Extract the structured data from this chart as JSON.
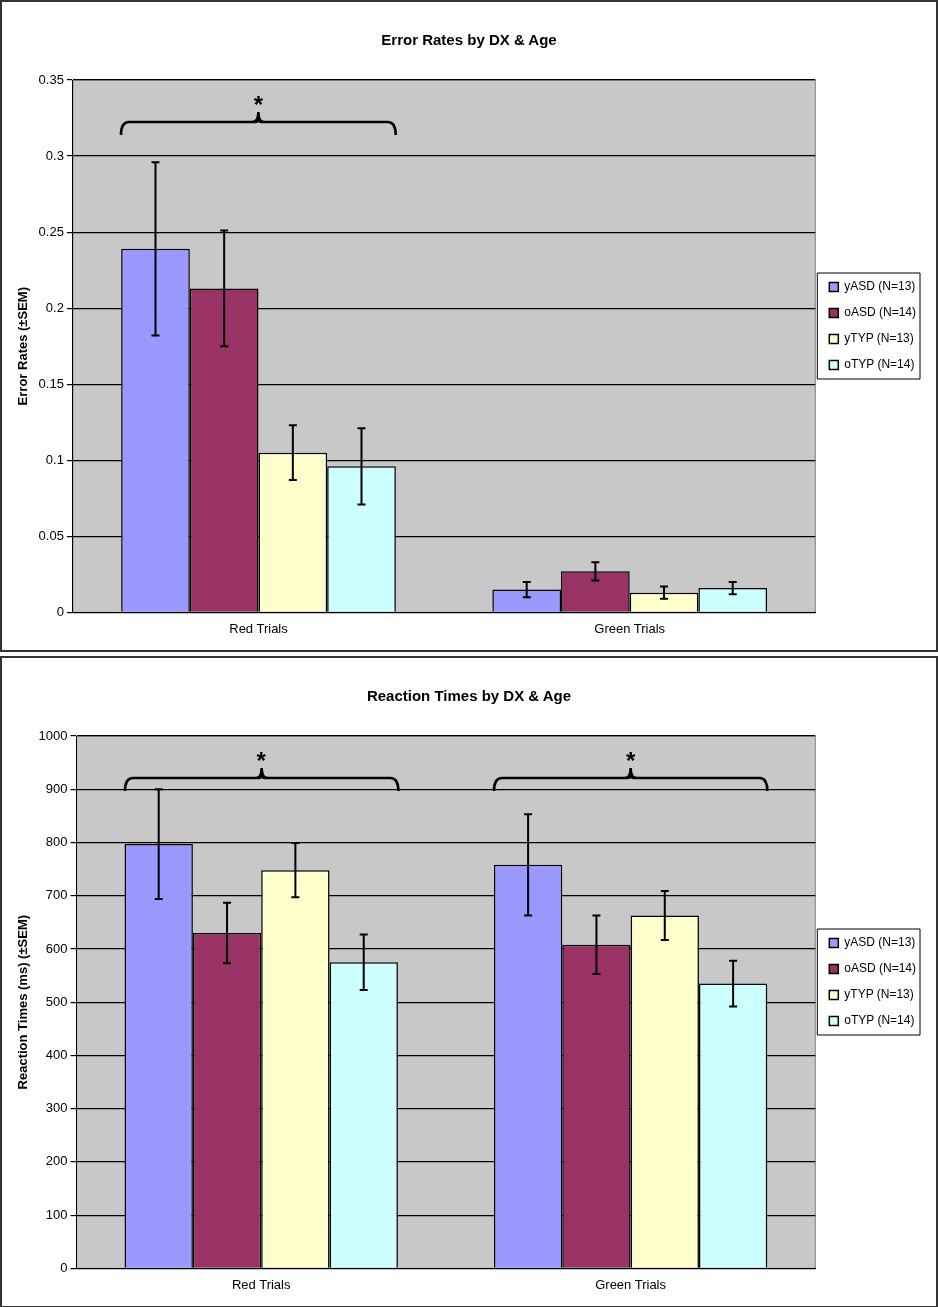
{
  "chart_data": [
    {
      "type": "bar",
      "title": "Error Rates by DX & Age",
      "ylabel": "Error Rates (±SEM)",
      "categories": [
        "Red Trials",
        "Green Trials"
      ],
      "series": [
        {
          "name": "yASD (N=13)",
          "color": "#9999ff",
          "values": [
            0.239,
            0.015
          ],
          "errors": [
            0.057,
            0.005
          ]
        },
        {
          "name": "oASD (N=14)",
          "color": "#993366",
          "values": [
            0.213,
            0.027
          ],
          "errors": [
            0.038,
            0.006
          ]
        },
        {
          "name": "yTYP (N=13)",
          "color": "#ffffcc",
          "values": [
            0.105,
            0.013
          ],
          "errors": [
            0.018,
            0.004
          ]
        },
        {
          "name": "oTYP (N=14)",
          "color": "#ccffff",
          "values": [
            0.096,
            0.016
          ],
          "errors": [
            0.025,
            0.004
          ]
        }
      ],
      "ylim": [
        0,
        0.35
      ],
      "yticks": [
        0,
        0.05,
        0.1,
        0.15,
        0.2,
        0.25,
        0.3,
        0.35
      ],
      "grid": "y",
      "legend": "right",
      "annotations": [
        "*"
      ]
    },
    {
      "type": "bar",
      "title": "Reaction Times by DX & Age",
      "ylabel": "Reaction Times (ms) (±SEM)",
      "categories": [
        "Red Trials",
        "Green Trials"
      ],
      "series": [
        {
          "name": "yASD (N=13)",
          "color": "#9999ff",
          "values": [
            797,
            758
          ],
          "errors": [
            103,
            95
          ]
        },
        {
          "name": "oASD (N=14)",
          "color": "#993366",
          "values": [
            630,
            608
          ],
          "errors": [
            57,
            55
          ]
        },
        {
          "name": "yTYP (N=13)",
          "color": "#ffffcc",
          "values": [
            748,
            663
          ],
          "errors": [
            51,
            46
          ]
        },
        {
          "name": "oTYP (N=14)",
          "color": "#ccffff",
          "values": [
            575,
            535
          ],
          "errors": [
            52,
            43
          ]
        }
      ],
      "ylim": [
        0,
        1000
      ],
      "yticks": [
        0,
        100,
        200,
        300,
        400,
        500,
        600,
        700,
        800,
        900,
        1000
      ],
      "grid": "y",
      "legend": "right",
      "annotations": [
        "*",
        "*"
      ]
    }
  ]
}
